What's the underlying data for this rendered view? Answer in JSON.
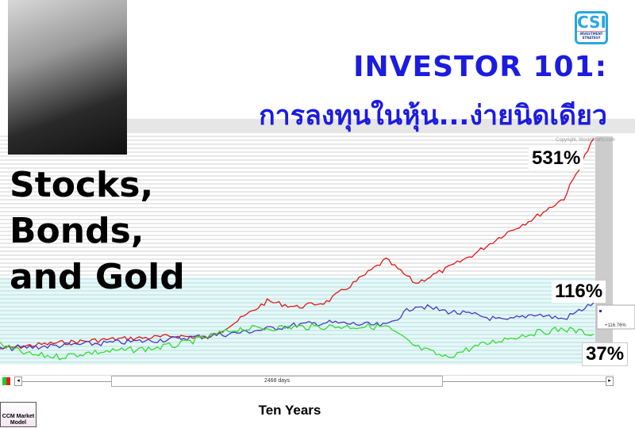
{
  "header": {
    "title": "INVESTOR 101:",
    "subtitle": "การลงทุนในหุ้น...ง่ายนิดเดียว",
    "logo_text": "CSI",
    "logo_sub": "INVESTMENT STRATEGY"
  },
  "side_title": [
    "Stocks,",
    "Bonds,",
    "and Gold"
  ],
  "callouts": {
    "stocks": "531%",
    "bonds": "116%",
    "gold": "37%"
  },
  "chart_data": {
    "type": "line",
    "copyright": "Copyright, StockCharts.com",
    "xlabel": "Ten Years",
    "ylabel": "",
    "ylim": [
      -40,
      540
    ],
    "grid": true,
    "tooltip": "+116.76%",
    "series": [
      {
        "color": "#e01818",
        "values": [
          0,
          8,
          15,
          20,
          25,
          28,
          32,
          28,
          70,
          120,
          105,
          118,
          170,
          225,
          165,
          200,
          240,
          290,
          330,
          380,
          531
        ]
      },
      {
        "color": "#4a3ac0",
        "values": [
          0,
          4,
          8,
          12,
          16,
          20,
          26,
          32,
          40,
          50,
          60,
          66,
          62,
          58,
          110,
          95,
          85,
          70,
          88,
          75,
          116
        ]
      },
      {
        "color": "#33dd33",
        "values": [
          10,
          -15,
          -20,
          -10,
          -5,
          0,
          10,
          30,
          50,
          52,
          55,
          56,
          56,
          56,
          5,
          -22,
          5,
          25,
          40,
          50,
          37
        ]
      }
    ]
  },
  "scrollbar": {
    "range_label": "2468 days",
    "left": "◂",
    "right": "▸"
  },
  "footer_logo": "CCM Market Model",
  "colors": {
    "title": "#1c1ce0",
    "stocks": "#e01818",
    "bonds": "#4a3ac0",
    "gold": "#33dd33"
  }
}
